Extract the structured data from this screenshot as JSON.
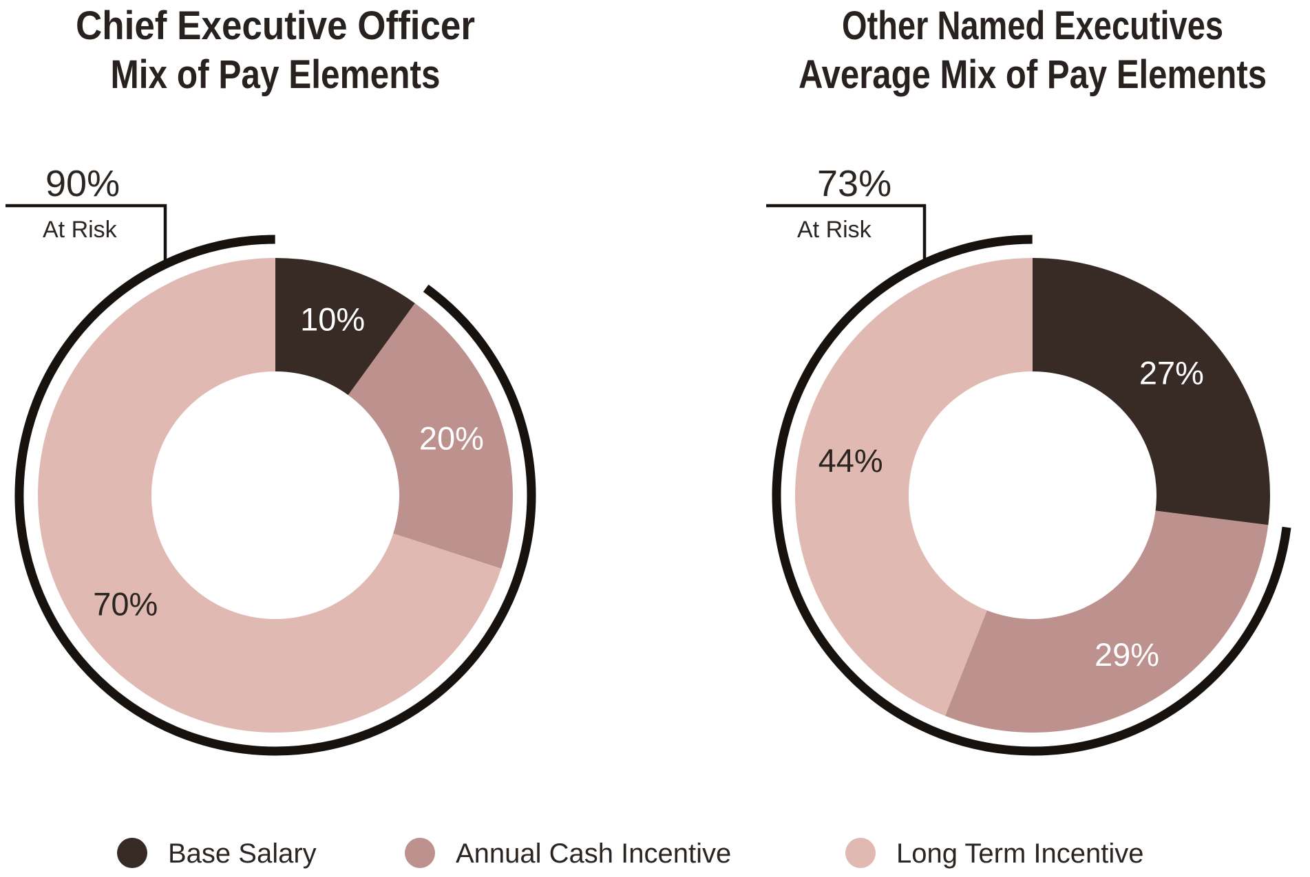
{
  "page": {
    "background": "#FFFFFF",
    "accent_dark": "#18120F"
  },
  "charts": [
    {
      "id": "ceo",
      "title_lines": [
        "Chief Executive Officer",
        "Mix of Pay Elements"
      ],
      "at_risk": {
        "value": "90%",
        "label": "At Risk"
      },
      "slices": [
        {
          "name": "Base Salary",
          "value": 10,
          "label": "10%",
          "color": "#382B26",
          "label_color": "#FFFFFF"
        },
        {
          "name": "Annual Cash Incentive",
          "value": 20,
          "label": "20%",
          "color": "#BD918D",
          "label_color": "#FFFFFF"
        },
        {
          "name": "Long Term Incentive",
          "value": 70,
          "label": "70%",
          "color": "#E0BAB2",
          "label_color": "#2B2522"
        }
      ]
    },
    {
      "id": "other-neos",
      "title_lines": [
        "Other Named Executives",
        "Average Mix of Pay Elements"
      ],
      "at_risk": {
        "value": "73%",
        "label": "At Risk"
      },
      "slices": [
        {
          "name": "Base Salary",
          "value": 27,
          "label": "27%",
          "color": "#382B26",
          "label_color": "#FFFFFF"
        },
        {
          "name": "Annual Cash Incentive",
          "value": 29,
          "label": "29%",
          "color": "#BD918D",
          "label_color": "#FFFFFF"
        },
        {
          "name": "Long Term Incentive",
          "value": 44,
          "label": "44%",
          "color": "#E0BAB2",
          "label_color": "#2B2522"
        }
      ]
    }
  ],
  "legend": [
    {
      "label": "Base Salary",
      "color": "#382B26"
    },
    {
      "label": "Annual Cash Incentive",
      "color": "#BD918D"
    },
    {
      "label": "Long Term Incentive",
      "color": "#E0BAB2"
    }
  ],
  "chart_data": [
    {
      "type": "pie",
      "subtype": "donut",
      "title": "Chief Executive Officer Mix of Pay Elements",
      "categories": [
        "Base Salary",
        "Annual Cash Incentive",
        "Long Term Incentive"
      ],
      "values": [
        10,
        20,
        70
      ],
      "unit": "percent",
      "start_angle_deg": 0,
      "direction": "clockwise",
      "annotation": {
        "label": "At Risk",
        "value": 90,
        "covers": [
          "Annual Cash Incentive",
          "Long Term Incentive"
        ],
        "style": "outer-arc"
      },
      "legend_position": "bottom"
    },
    {
      "type": "pie",
      "subtype": "donut",
      "title": "Other Named Executives Average Mix of Pay Elements",
      "categories": [
        "Base Salary",
        "Annual Cash Incentive",
        "Long Term Incentive"
      ],
      "values": [
        27,
        29,
        44
      ],
      "unit": "percent",
      "start_angle_deg": 0,
      "direction": "clockwise",
      "annotation": {
        "label": "At Risk",
        "value": 73,
        "covers": [
          "Annual Cash Incentive",
          "Long Term Incentive"
        ],
        "style": "outer-arc"
      },
      "legend_position": "bottom"
    }
  ]
}
